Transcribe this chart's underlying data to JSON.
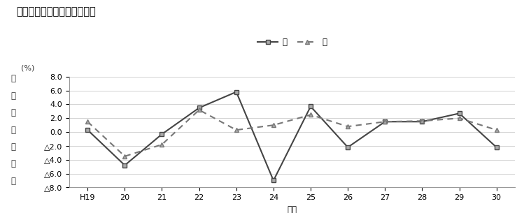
{
  "title": "図１　実質経済成長率の推移",
  "xlabel": "年度",
  "ylabel_chars": [
    "実",
    "質",
    "経",
    "済",
    "成",
    "長",
    "率"
  ],
  "ylabel_top": "(%)",
  "x_labels": [
    "H19",
    "20",
    "21",
    "22",
    "23",
    "24",
    "25",
    "26",
    "27",
    "28",
    "29",
    "30"
  ],
  "x_values": [
    0,
    1,
    2,
    3,
    4,
    5,
    6,
    7,
    8,
    9,
    10,
    11
  ],
  "ken_values": [
    0.3,
    -4.8,
    -0.3,
    3.5,
    5.8,
    -7.0,
    3.7,
    -2.2,
    1.5,
    1.5,
    2.7,
    -2.2
  ],
  "koku_values": [
    1.5,
    -3.5,
    -1.8,
    3.2,
    0.3,
    1.0,
    2.5,
    0.8,
    1.5,
    1.6,
    2.0,
    0.3
  ],
  "ylim": [
    -8.0,
    8.0
  ],
  "yticks": [
    -8.0,
    -6.0,
    -4.0,
    -2.0,
    0.0,
    2.0,
    4.0,
    6.0,
    8.0
  ],
  "ken_color": "#444444",
  "koku_color": "#777777",
  "bg_color": "#ffffff",
  "grid_color": "#cccccc",
  "legend_ken": "県",
  "legend_koku": "国",
  "title_fontsize": 10.5,
  "label_fontsize": 8.5,
  "tick_fontsize": 8
}
